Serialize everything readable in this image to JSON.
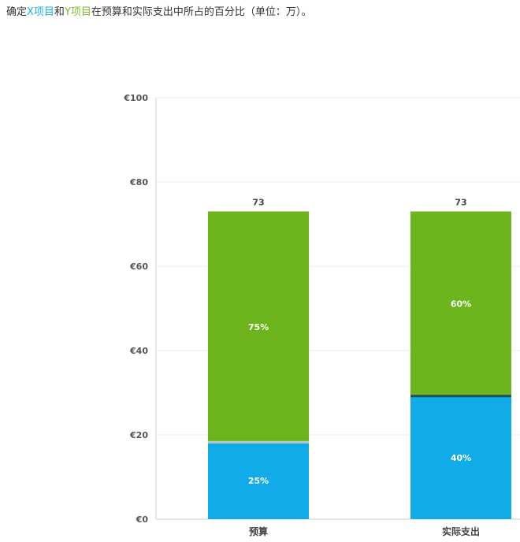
{
  "question": {
    "prefix": "确定",
    "x_term": "X项目",
    "and": "和",
    "y_term": "Y项目",
    "suffix": "在预算和实际支出中所占的百分比（单位：万）。"
  },
  "colors": {
    "x": "#12abe9",
    "y": "#6cb51c",
    "grid": "#ececec",
    "axis": "#cccccc"
  },
  "chart_data": {
    "type": "bar",
    "stacked": true,
    "categories": [
      "预算",
      "实际支出"
    ],
    "series": [
      {
        "values": [
          18.25,
          29.2
        ],
        "labels": [
          "25%",
          "40%"
        ],
        "color": "#12abe9"
      },
      {
        "values": [
          54.75,
          43.8
        ],
        "labels": [
          "75%",
          "60%"
        ],
        "color": "#6cb51c"
      }
    ],
    "totals": [
      "73",
      "73"
    ],
    "ylim": [
      0,
      100
    ],
    "yticks": [
      0,
      20,
      40,
      60,
      80,
      100
    ],
    "ytick_labels": [
      "€0",
      "€20",
      "€40",
      "€60",
      "€80",
      "€100"
    ],
    "grid": true,
    "legend": "none"
  }
}
